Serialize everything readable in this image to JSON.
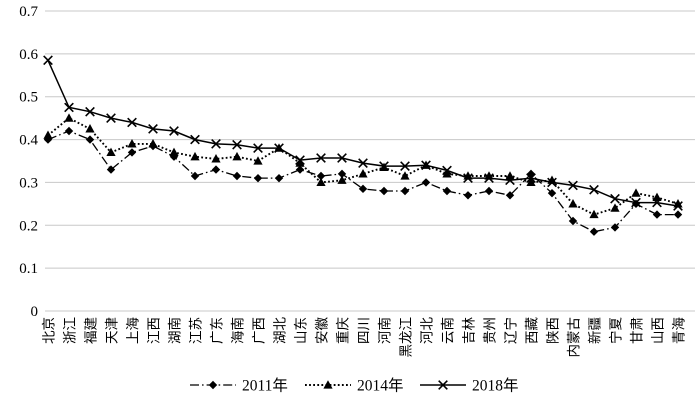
{
  "chart_data": {
    "type": "line",
    "title": "",
    "xlabel": "",
    "ylabel": "",
    "categories": [
      "北京",
      "浙江",
      "福建",
      "天津",
      "上海",
      "江西",
      "湖南",
      "江苏",
      "广东",
      "海南",
      "广西",
      "湖北",
      "山东",
      "安徽",
      "重庆",
      "四川",
      "河南",
      "黑龙江",
      "河北",
      "云南",
      "吉林",
      "贵州",
      "辽宁",
      "西藏",
      "陕西",
      "内蒙古",
      "新疆",
      "宁夏",
      "甘肃",
      "山西",
      "青海"
    ],
    "series": [
      {
        "name": "2011年",
        "marker": "diamond",
        "line": "dashdot",
        "values": [
          0.4,
          0.42,
          0.4,
          0.33,
          0.37,
          0.385,
          0.36,
          0.315,
          0.33,
          0.315,
          0.31,
          0.31,
          0.33,
          0.315,
          0.32,
          0.285,
          0.28,
          0.28,
          0.3,
          0.28,
          0.27,
          0.28,
          0.27,
          0.32,
          0.275,
          0.21,
          0.185,
          0.195,
          0.25,
          0.225,
          0.225
        ]
      },
      {
        "name": "2014年",
        "marker": "triangle",
        "line": "dotted",
        "values": [
          0.41,
          0.45,
          0.425,
          0.37,
          0.39,
          0.39,
          0.37,
          0.36,
          0.355,
          0.36,
          0.35,
          0.38,
          0.345,
          0.3,
          0.305,
          0.32,
          0.335,
          0.315,
          0.34,
          0.32,
          0.315,
          0.315,
          0.315,
          0.3,
          0.305,
          0.25,
          0.225,
          0.24,
          0.275,
          0.265,
          0.25
        ]
      },
      {
        "name": "2018年",
        "marker": "x",
        "line": "solid",
        "values": [
          0.585,
          0.475,
          0.465,
          0.45,
          0.44,
          0.425,
          0.42,
          0.4,
          0.39,
          0.388,
          0.38,
          0.38,
          0.352,
          0.357,
          0.357,
          0.345,
          0.338,
          0.338,
          0.34,
          0.328,
          0.31,
          0.31,
          0.305,
          0.31,
          0.3,
          0.293,
          0.283,
          0.262,
          0.253,
          0.253,
          0.245
        ]
      }
    ],
    "ylim": [
      0,
      0.7
    ],
    "ytick_step": 0.1,
    "ytick_labels": [
      "0",
      "0.1",
      "0.2",
      "0.3",
      "0.4",
      "0.5",
      "0.6",
      "0.7"
    ],
    "grid": "horizontal-only",
    "legend_position": "bottom-center",
    "colors": {
      "series": "#000000",
      "grid": "#c8c8c8",
      "text": "#000000",
      "background": "#ffffff"
    }
  }
}
